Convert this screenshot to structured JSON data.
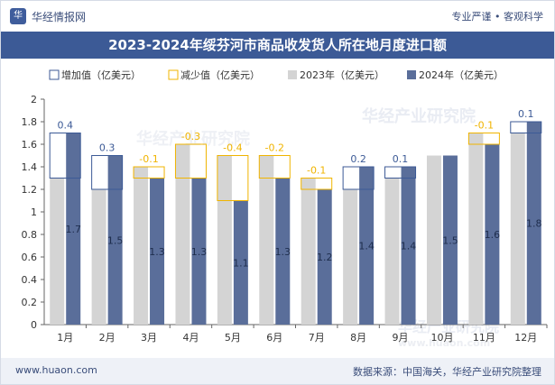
{
  "header": {
    "brand_logo_text": "华",
    "brand_name": "华经情报网",
    "tagline": "专业严谨 • 客观科学"
  },
  "footer": {
    "website": "www.huaon.com",
    "source": "数据来源：中国海关，华经产业研究院整理"
  },
  "watermark": {
    "cn": "华经产业研究院",
    "url": "www.huaon.com"
  },
  "colors": {
    "y2023": "#d4d4d4",
    "y2024": "#5a6e9a",
    "increase": "#3c5a96",
    "decrease": "#f0b400",
    "axis": "#666666",
    "title_bg": "#3c5a96"
  },
  "chart_data": {
    "type": "bar",
    "title": "2023-2024年绥芬河市商品收发货人所在地月度进口额",
    "categories": [
      "1月",
      "2月",
      "3月",
      "4月",
      "5月",
      "6月",
      "7月",
      "8月",
      "9月",
      "10月",
      "11月",
      "12月"
    ],
    "series": [
      {
        "name": "2023年(亿美元)",
        "values": [
          1.3,
          1.2,
          1.4,
          1.6,
          1.5,
          1.5,
          1.3,
          1.2,
          1.3,
          1.5,
          1.7,
          1.7
        ]
      },
      {
        "name": "2024年(亿美元)",
        "values": [
          1.7,
          1.5,
          1.3,
          1.3,
          1.1,
          1.3,
          1.2,
          1.4,
          1.4,
          1.5,
          1.6,
          1.8
        ]
      }
    ],
    "change": [
      0.4,
      0.3,
      -0.1,
      -0.3,
      -0.4,
      -0.2,
      -0.1,
      0.2,
      0.1,
      0,
      -0.1,
      0.1
    ],
    "change_labels": [
      "0.4",
      "0.3",
      "-0.1",
      "-0.3",
      "-0.4",
      "-0.2",
      "-0.1",
      "0.2",
      "0.1",
      "",
      "-0.1",
      "0.1"
    ],
    "data_labels_2024": [
      "1.7",
      "1.5",
      "1.3",
      "1.3",
      "1.1",
      "1.3",
      "1.2",
      "1.4",
      "1.4",
      "1.5",
      "1.6",
      "1.8"
    ],
    "legend": [
      "增加值（亿美元）",
      "减少值（亿美元）",
      "2023年（亿美元）",
      "2024年（亿美元）"
    ],
    "ylim": [
      0,
      2
    ],
    "yticks": [
      "0",
      "0.2",
      "0.4",
      "0.6",
      "0.8",
      "1",
      "1.2",
      "1.4",
      "1.6",
      "1.8",
      "2"
    ],
    "legend_position": "top"
  }
}
